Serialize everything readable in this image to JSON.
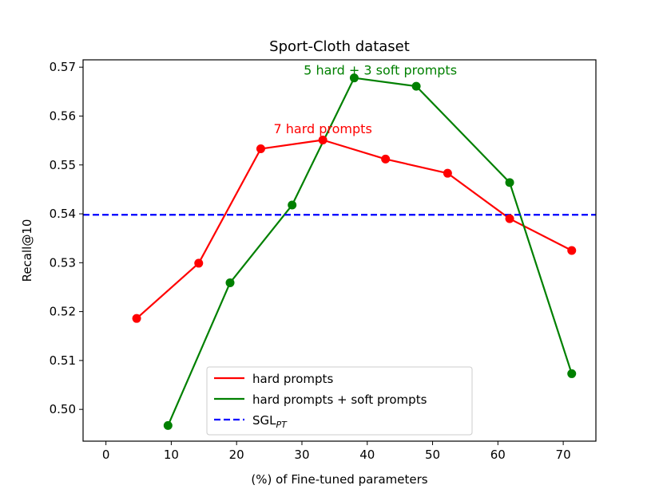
{
  "chart_data": {
    "type": "line",
    "title": "Sport-Cloth dataset",
    "xlabel": "(%) of Fine-tuned parameters",
    "ylabel": "Recall@10",
    "xlim": [
      -3.5,
      75
    ],
    "ylim": [
      0.4935,
      0.5715
    ],
    "xticks": [
      0,
      10,
      20,
      30,
      40,
      50,
      60,
      70
    ],
    "yticks": [
      0.5,
      0.51,
      0.52,
      0.53,
      0.54,
      0.55,
      0.56,
      0.57
    ],
    "ytick_labels": [
      "0.50",
      "0.51",
      "0.52",
      "0.53",
      "0.54",
      "0.55",
      "0.56",
      "0.57"
    ],
    "grid": false,
    "legend_position": "lower-center",
    "series": [
      {
        "name": "hard prompts",
        "color": "#ff0000",
        "style": "solid",
        "markers": true,
        "x": [
          4.7,
          14.2,
          23.7,
          33.2,
          42.8,
          52.3,
          61.8,
          71.3
        ],
        "y": [
          0.5186,
          0.5299,
          0.5533,
          0.5551,
          0.5512,
          0.5483,
          0.539,
          0.5325
        ]
      },
      {
        "name": "hard prompts + soft prompts",
        "color": "#008000",
        "style": "solid",
        "markers": true,
        "x": [
          9.5,
          19.0,
          28.5,
          38.0,
          47.5,
          61.8,
          71.3
        ],
        "y": [
          0.4967,
          0.5259,
          0.5418,
          0.5678,
          0.5661,
          0.5464,
          0.5073
        ]
      },
      {
        "name": "SGL",
        "name_sub": "PT",
        "color": "#0000ff",
        "style": "dashed",
        "markers": false,
        "hline": 0.5398
      }
    ],
    "annotations": [
      {
        "text": "7 hard prompts",
        "x": 33.2,
        "y": 0.5565,
        "color": "#ff0000"
      },
      {
        "text": "5 hard + 3 soft prompts",
        "x": 42.0,
        "y": 0.5685,
        "color": "#008000"
      }
    ]
  }
}
